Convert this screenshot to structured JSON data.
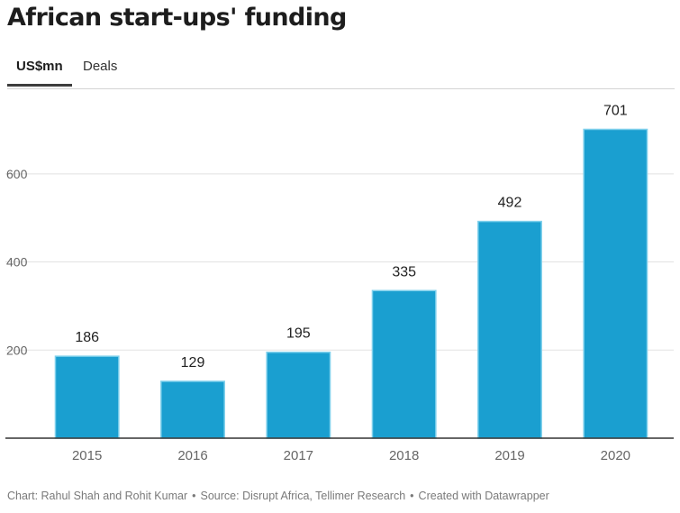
{
  "title": "African start-ups' funding",
  "tabs": [
    {
      "label": "US$mn",
      "active": true
    },
    {
      "label": "Deals",
      "active": false
    }
  ],
  "footer": {
    "credit": "Chart: Rahul Shah and Rohit Kumar",
    "source": "Source: Disrupt Africa, Tellimer Research",
    "tool": "Created with Datawrapper",
    "separator": "•"
  },
  "colors": {
    "bar": "#1a9fd0",
    "bar_edge": "#7fd0ec",
    "grid": "#e2e2e2",
    "axis": "#333333",
    "tick_text": "#666666",
    "label_text": "#222222"
  },
  "chart_data": {
    "type": "bar",
    "title": "African start-ups' funding",
    "xlabel": "",
    "ylabel": "US$mn",
    "categories": [
      "2015",
      "2016",
      "2017",
      "2018",
      "2019",
      "2020"
    ],
    "values": [
      186,
      129,
      195,
      335,
      492,
      701
    ],
    "data_labels": [
      "186",
      "129",
      "195",
      "335",
      "492",
      "701"
    ],
    "ylim": [
      0,
      790
    ],
    "yticks": [
      200,
      400,
      600
    ],
    "grid": true,
    "legend": "none"
  }
}
